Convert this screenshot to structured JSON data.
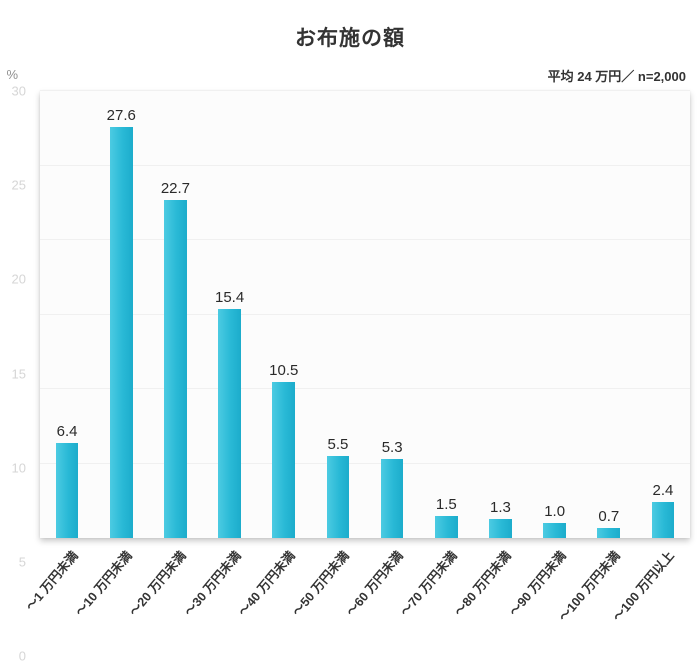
{
  "chart_data": {
    "type": "bar",
    "title": "お布施の額",
    "subtitle": "平均 24 万円／ n=2,000",
    "unit": "%",
    "categories": [
      "～1 万円未満",
      "～10 万円未満",
      "～20 万円未満",
      "～30 万円未満",
      "～40 万円未満",
      "～50 万円未満",
      "～60 万円未満",
      "～70 万円未満",
      "～80 万円未満",
      "～90 万円未満",
      "～100 万円未満",
      "～100 万円以上"
    ],
    "values": [
      6.4,
      27.6,
      22.7,
      15.4,
      10.5,
      5.5,
      5.3,
      1.5,
      1.3,
      1.0,
      0.7,
      2.4
    ],
    "ylim": [
      0,
      30
    ],
    "ytick_step": 5,
    "bar_color": "#29b9d6",
    "legend": "none",
    "grid": false,
    "xlabel": "",
    "ylabel": "%"
  }
}
